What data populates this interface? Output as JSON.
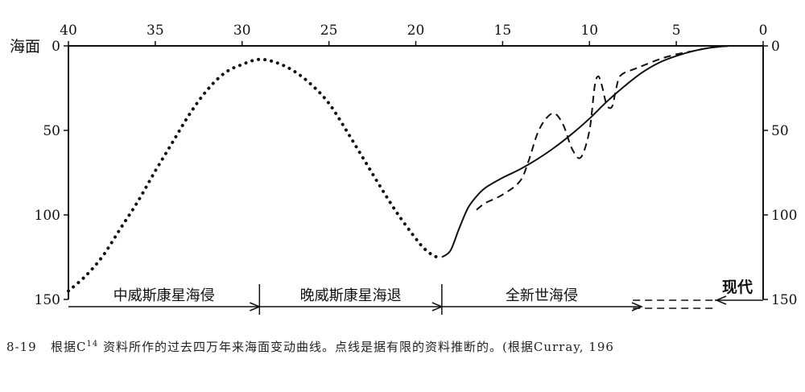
{
  "chart_data": {
    "type": "line",
    "title": "",
    "x_axis": {
      "label": "",
      "ticks": [
        40,
        35,
        30,
        25,
        20,
        15,
        10,
        5,
        0
      ],
      "range": [
        40,
        0
      ]
    },
    "y_axis": {
      "label": "海面",
      "ticks": [
        0,
        50,
        100,
        150
      ],
      "range": [
        0,
        150
      ],
      "inverted": true
    },
    "series": [
      {
        "name": "",
        "style": "dotted",
        "x": [
          40,
          39,
          38,
          37,
          36,
          35,
          34,
          33,
          32,
          31,
          30,
          29,
          28,
          27,
          26,
          25,
          24,
          23,
          22,
          21,
          20,
          19.5,
          19,
          18.7,
          18.5
        ],
        "y": [
          145,
          136,
          124,
          108,
          92,
          74,
          57,
          40,
          26,
          16,
          11,
          8,
          10,
          15,
          23,
          34,
          50,
          67,
          84,
          100,
          114,
          120,
          124,
          125,
          125
        ]
      },
      {
        "name": "",
        "style": "solid",
        "x": [
          18.5,
          18,
          17.5,
          17,
          16.5,
          16,
          15,
          14,
          13,
          12,
          11,
          10,
          9,
          8,
          7,
          6,
          5,
          4,
          3,
          2
        ],
        "y": [
          125,
          121,
          108,
          96,
          89,
          84,
          78,
          73,
          67,
          60,
          52,
          43,
          33,
          24,
          16,
          10,
          6,
          3,
          1,
          0
        ]
      },
      {
        "name": "",
        "style": "dashed",
        "x": [
          16.5,
          16,
          15,
          14,
          13.5,
          13,
          12.5,
          12,
          11.5,
          11,
          10.5,
          10,
          9.7,
          9.5,
          9.3,
          9,
          8.7,
          8.5,
          8.3,
          8,
          7.5,
          7,
          6,
          5,
          4,
          3,
          2
        ],
        "y": [
          97,
          93,
          88,
          80,
          68,
          52,
          43,
          40,
          47,
          61,
          66,
          50,
          24,
          18,
          23,
          35,
          36,
          27,
          19,
          16,
          14,
          12,
          8,
          5,
          3,
          1,
          0
        ]
      }
    ],
    "periods": [
      {
        "label": "中威斯康星海侵",
        "from": 40,
        "to": 29
      },
      {
        "label": "晚威斯康星海退",
        "from": 29,
        "to": 18.5
      },
      {
        "label": "全新世海侵",
        "from": 18.5,
        "to": 7
      }
    ],
    "present_label": "现代"
  },
  "caption": {
    "number": "8-19",
    "text_before": "根据C",
    "superscript": "14",
    "text_after": "资料所作的过去四万年来海面变动曲线。点线是据有限的资料推断的。(根据Curray, 196"
  }
}
